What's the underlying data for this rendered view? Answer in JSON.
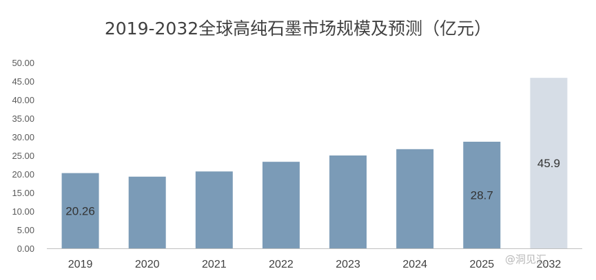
{
  "watermark": "@洞见汇",
  "chart_data": {
    "type": "bar",
    "title": "2019-2032全球高纯石墨市场规模及预测（亿元）",
    "xlabel": "",
    "ylabel": "",
    "ylim": [
      0,
      50
    ],
    "yticks": [
      "0.00",
      "5.00",
      "10.00",
      "15.00",
      "20.00",
      "25.00",
      "30.00",
      "35.00",
      "40.00",
      "45.00",
      "50.00"
    ],
    "categories": [
      "2019",
      "2020",
      "2021",
      "2022",
      "2023",
      "2024",
      "2025",
      "2032"
    ],
    "values": [
      20.26,
      19.3,
      20.7,
      23.3,
      25.0,
      26.7,
      28.7,
      45.9
    ],
    "data_labels": [
      "20.26",
      "",
      "",
      "",
      "",
      "",
      "28.7",
      "45.9"
    ],
    "grid": false,
    "legend": "none",
    "colors": {
      "actual": "#7b9bb7",
      "forecast": "#d6dde6",
      "axis": "#bfbfbf"
    },
    "forecast_categories": [
      "2032"
    ]
  }
}
